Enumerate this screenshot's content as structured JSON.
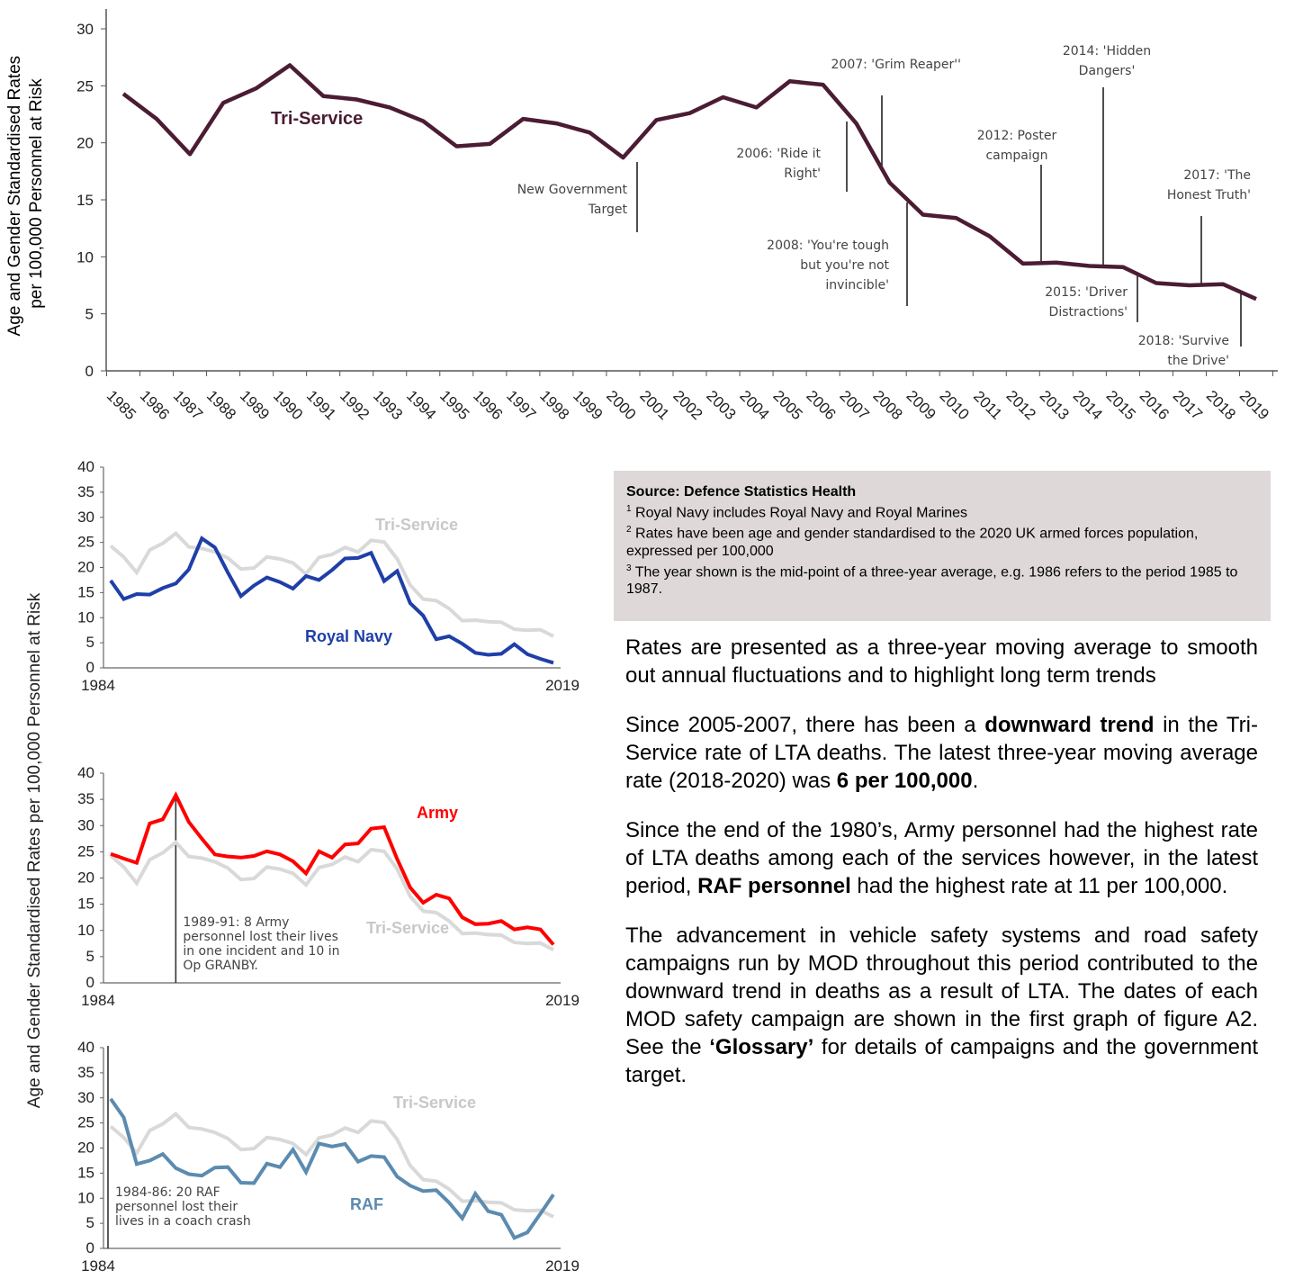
{
  "chart_data": [
    {
      "type": "line",
      "ylabel": "Age and Gender Standardised Rates per 100,000 Personnel at Risk",
      "ylim": [
        0,
        30
      ],
      "yticks": [
        "0",
        "5",
        "10",
        "15",
        "20",
        "25",
        "30"
      ],
      "x": [
        1985,
        1986,
        1987,
        1988,
        1989,
        1990,
        1991,
        1992,
        1993,
        1994,
        1995,
        1996,
        1997,
        1998,
        1999,
        2000,
        2001,
        2002,
        2003,
        2004,
        2005,
        2006,
        2007,
        2008,
        2009,
        2010,
        2011,
        2012,
        2013,
        2014,
        2015,
        2016,
        2017,
        2018,
        2019
      ],
      "series": [
        {
          "name": "Tri-Service",
          "color": "#4b1c33",
          "values": [
            24.3,
            22.1,
            19.0,
            23.5,
            24.8,
            26.8,
            24.1,
            23.8,
            23.1,
            21.9,
            19.7,
            19.9,
            22.1,
            21.7,
            20.9,
            18.7,
            22.0,
            22.6,
            24.0,
            23.1,
            25.4,
            25.1,
            21.7,
            16.5,
            13.7,
            13.4,
            11.8,
            9.4,
            9.5,
            9.2,
            9.1,
            7.7,
            7.5,
            7.6,
            6.3
          ]
        }
      ],
      "annotations": [
        {
          "line1": "New Government",
          "line2": "Target",
          "line3": "",
          "year": 2000
        },
        {
          "line1": "2006: 'Ride it",
          "line2": "Right'",
          "line3": "",
          "year": 2006
        },
        {
          "line1": "2007: 'Grim Reaper''",
          "line2": "",
          "line3": "",
          "year": 2007
        },
        {
          "line1": "2008: 'You're tough",
          "line2": "but you're not",
          "line3": "invincible'",
          "year": 2008
        },
        {
          "line1": "2012: Poster",
          "line2": "campaign",
          "line3": "",
          "year": 2012
        },
        {
          "line1": "2014: 'Hidden",
          "line2": "Dangers'",
          "line3": "",
          "year": 2014
        },
        {
          "line1": "2015: 'Driver",
          "line2": "Distractions'",
          "line3": "",
          "year": 2015
        },
        {
          "line1": "2017: 'The",
          "line2": "Honest Truth'",
          "line3": "",
          "year": 2017
        },
        {
          "line1": "2018: 'Survive",
          "line2": "the Drive'",
          "line3": "",
          "year": 2018
        }
      ]
    },
    {
      "type": "line",
      "ylim": [
        0,
        40
      ],
      "yticks": [
        "0",
        "5",
        "10",
        "15",
        "20",
        "25",
        "30",
        "35",
        "40"
      ],
      "xticks": [
        "1984",
        "2019"
      ],
      "x_range": [
        1984,
        2019
      ],
      "series": [
        {
          "name": "Tri-Service",
          "color": "#d9d9d9",
          "values": [
            24.3,
            22.1,
            19.0,
            23.5,
            24.8,
            26.8,
            24.1,
            23.8,
            23.1,
            21.9,
            19.7,
            19.9,
            22.1,
            21.7,
            20.9,
            18.7,
            22.0,
            22.6,
            24.0,
            23.1,
            25.4,
            25.1,
            21.7,
            16.5,
            13.7,
            13.4,
            11.8,
            9.4,
            9.5,
            9.2,
            9.1,
            7.7,
            7.5,
            7.6,
            6.3
          ]
        },
        {
          "name": "Royal Navy",
          "color": "#1f3fa8",
          "values": [
            17.4,
            13.7,
            14.7,
            14.6,
            15.9,
            16.8,
            19.6,
            25.8,
            24.0,
            19.0,
            14.3,
            16.4,
            18.0,
            17.1,
            15.8,
            18.3,
            17.5,
            19.5,
            21.8,
            21.9,
            22.9,
            17.3,
            19.3,
            12.9,
            10.4,
            5.7,
            6.3,
            4.8,
            3.0,
            2.6,
            2.8,
            4.7,
            2.7,
            1.8,
            1.0
          ]
        }
      ]
    },
    {
      "type": "line",
      "ylim": [
        0,
        40
      ],
      "yticks": [
        "0",
        "5",
        "10",
        "15",
        "20",
        "25",
        "30",
        "35",
        "40"
      ],
      "xticks": [
        "1984",
        "2019"
      ],
      "x_range": [
        1984,
        2019
      ],
      "annotation": {
        "line1": "1989-91: 8 Army",
        "line2": "personnel lost their lives",
        "line3": "in one incident and 10 in",
        "line4": "Op GRANBY.",
        "year": 1990
      },
      "series": [
        {
          "name": "Tri-Service",
          "color": "#d9d9d9",
          "values": [
            24.3,
            22.1,
            19.0,
            23.5,
            24.8,
            26.8,
            24.1,
            23.8,
            23.1,
            21.9,
            19.7,
            19.9,
            22.1,
            21.7,
            20.9,
            18.7,
            22.0,
            22.6,
            24.0,
            23.1,
            25.4,
            25.1,
            21.7,
            16.5,
            13.7,
            13.4,
            11.8,
            9.4,
            9.5,
            9.2,
            9.1,
            7.7,
            7.5,
            7.6,
            6.3
          ]
        },
        {
          "name": "Army",
          "color": "#ff0000",
          "values": [
            24.6,
            23.7,
            22.9,
            30.4,
            31.2,
            35.8,
            30.7,
            27.5,
            24.5,
            24.1,
            23.9,
            24.2,
            25.1,
            24.5,
            23.2,
            20.9,
            25.1,
            23.9,
            26.4,
            26.6,
            29.4,
            29.7,
            23.6,
            18.2,
            15.3,
            16.8,
            16.1,
            12.5,
            11.2,
            11.3,
            11.8,
            10.2,
            10.6,
            10.2,
            7.3
          ]
        }
      ]
    },
    {
      "type": "line",
      "ylim": [
        0,
        40
      ],
      "yticks": [
        "0",
        "5",
        "10",
        "15",
        "20",
        "25",
        "30",
        "35",
        "40"
      ],
      "xticks": [
        "1984",
        "2019"
      ],
      "x_range": [
        1984,
        2019
      ],
      "annotation": {
        "line1": "1984-86: 20 RAF",
        "line2": "personnel lost their",
        "line3": "lives in a coach crash",
        "line4": "",
        "year": 1984.4
      },
      "series": [
        {
          "name": "Tri-Service",
          "color": "#d9d9d9",
          "values": [
            24.3,
            22.1,
            19.0,
            23.5,
            24.8,
            26.8,
            24.1,
            23.8,
            23.1,
            21.9,
            19.7,
            19.9,
            22.1,
            21.7,
            20.9,
            18.7,
            22.0,
            22.6,
            24.0,
            23.1,
            25.4,
            25.1,
            21.7,
            16.5,
            13.7,
            13.4,
            11.8,
            9.4,
            9.5,
            9.2,
            9.1,
            7.7,
            7.5,
            7.6,
            6.3
          ]
        },
        {
          "name": "RAF",
          "color": "#5b8bb0",
          "values": [
            29.8,
            26.1,
            16.8,
            17.5,
            18.8,
            16.0,
            14.8,
            14.5,
            16.1,
            16.2,
            13.1,
            13.0,
            16.9,
            16.2,
            19.7,
            15.2,
            20.9,
            20.3,
            20.8,
            17.3,
            18.4,
            18.2,
            14.3,
            12.5,
            11.4,
            11.6,
            9.1,
            6.0,
            10.9,
            7.4,
            6.7,
            2.1,
            3.2,
            6.9,
            10.7
          ]
        }
      ]
    }
  ],
  "lower_ylabel": "Age and Gender Standardised Rates per 100,000 Personnel at Risk",
  "source": {
    "title": "Source: Defence Statistics Health",
    "n1": "1",
    "note1": " Royal Navy includes Royal Navy and Royal Marines",
    "n2": "2",
    "note2": " Rates have been age and gender standardised to the 2020 UK armed forces population, expressed per 100,000",
    "n3": "3",
    "note3": " The year shown is the mid-point of a three-year average, e.g. 1986 refers to the period 1985 to 1987."
  },
  "body": {
    "p1": "Rates are presented as a three-year moving average to smooth out annual fluctuations and to highlight long term trends",
    "p2_a": "Since 2005-2007, there has been a ",
    "p2_b": "downward trend",
    "p2_c": " in the Tri-Service rate of LTA deaths. The latest three-year moving average rate (2018-2020) was ",
    "p2_d": "6 per 100,000",
    "p2_e": ".",
    "p3_a": "Since the end of the 1980’s, Army personnel had the highest rate of LTA deaths among each of the services however, in the latest period, ",
    "p3_b": "RAF personnel",
    "p3_c": " had the highest rate at 11 per 100,000.",
    "p4_a": "The advancement in vehicle safety systems and road safety campaigns run by MOD throughout this period contributed to the downward trend in deaths as a result of LTA. The dates of each MOD safety campaign are shown in the first graph of figure A2. See the ",
    "p4_b": "‘Glossary’",
    "p4_c": " for details of campaigns and the government target."
  }
}
